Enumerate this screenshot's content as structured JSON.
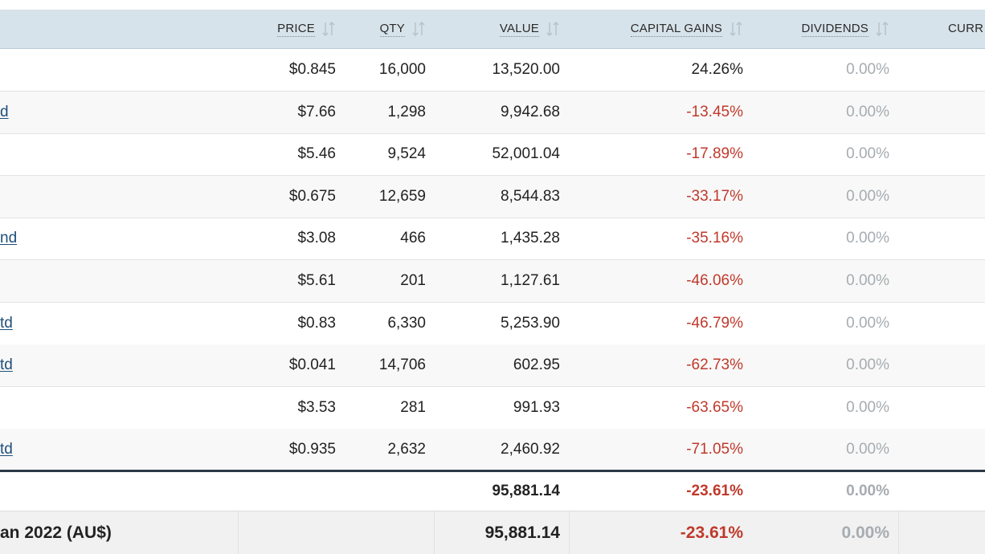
{
  "columns": {
    "price": "PRICE",
    "qty": "QTY",
    "value": "VALUE",
    "capital_gains": "CAPITAL GAINS",
    "dividends": "DIVIDENDS",
    "currency": "CURR"
  },
  "rows": [
    {
      "name": "",
      "price": "$0.845",
      "qty": "16,000",
      "value": "13,520.00",
      "capital_gains": "24.26%",
      "cg_negative": false,
      "dividends": "0.00%"
    },
    {
      "name": "d",
      "price": "$7.66",
      "qty": "1,298",
      "value": "9,942.68",
      "capital_gains": "-13.45%",
      "cg_negative": true,
      "dividends": "0.00%"
    },
    {
      "name": "",
      "price": "$5.46",
      "qty": "9,524",
      "value": "52,001.04",
      "capital_gains": "-17.89%",
      "cg_negative": true,
      "dividends": "0.00%"
    },
    {
      "name": "",
      "price": "$0.675",
      "qty": "12,659",
      "value": "8,544.83",
      "capital_gains": "-33.17%",
      "cg_negative": true,
      "dividends": "0.00%"
    },
    {
      "name": "nd",
      "price": "$3.08",
      "qty": "466",
      "value": "1,435.28",
      "capital_gains": "-35.16%",
      "cg_negative": true,
      "dividends": "0.00%"
    },
    {
      "name": "",
      "price": "$5.61",
      "qty": "201",
      "value": "1,127.61",
      "capital_gains": "-46.06%",
      "cg_negative": true,
      "dividends": "0.00%"
    },
    {
      "name": "td",
      "price": "$0.83",
      "qty": "6,330",
      "value": "5,253.90",
      "capital_gains": "-46.79%",
      "cg_negative": true,
      "dividends": "0.00%"
    },
    {
      "name": "td",
      "price": "$0.041",
      "qty": "14,706",
      "value": "602.95",
      "capital_gains": "-62.73%",
      "cg_negative": true,
      "dividends": "0.00%"
    },
    {
      "name": "",
      "price": "$3.53",
      "qty": "281",
      "value": "991.93",
      "capital_gains": "-63.65%",
      "cg_negative": true,
      "dividends": "0.00%"
    },
    {
      "name": "td",
      "price": "$0.935",
      "qty": "2,632",
      "value": "2,460.92",
      "capital_gains": "-71.05%",
      "cg_negative": true,
      "dividends": "0.00%"
    }
  ],
  "total": {
    "value": "95,881.14",
    "capital_gains": "-23.61%",
    "dividends": "0.00%"
  },
  "summary": {
    "label": "an 2022 (AU$)",
    "value": "95,881.14",
    "capital_gains": "-23.61%",
    "dividends": "0.00%"
  },
  "colors": {
    "header_bg": "#d7e3ea",
    "negative": "#c0392b",
    "muted": "#a6acb0",
    "link": "#1e4e79"
  },
  "icons": {
    "sort": "sort-arrows-icon"
  }
}
